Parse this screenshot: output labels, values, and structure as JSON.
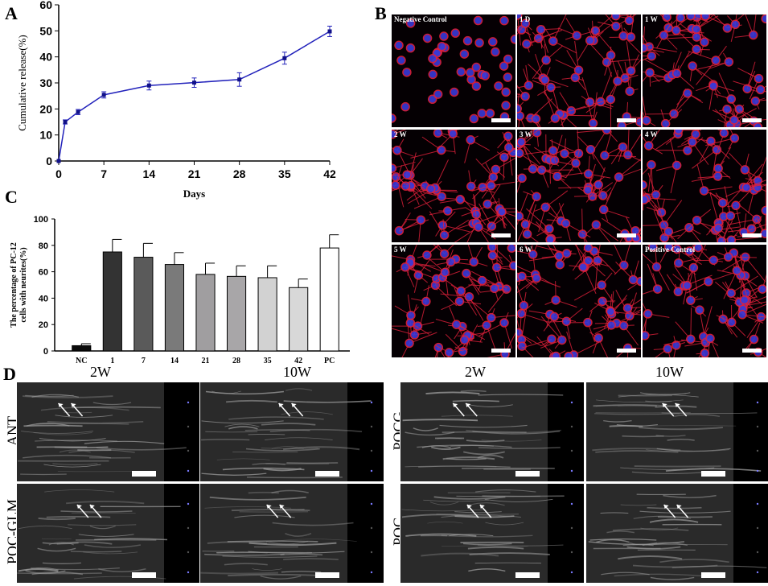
{
  "panel_labels": {
    "a": "A",
    "b": "B",
    "c": "C",
    "d": "D"
  },
  "chart_data": [
    {
      "type": "line",
      "panel": "A",
      "xlabel": "Days",
      "ylabel": "Cumulative release(%)",
      "xlim": [
        0,
        42
      ],
      "ylim": [
        0,
        60
      ],
      "xticks": [
        0,
        7,
        14,
        21,
        28,
        35,
        42
      ],
      "yticks": [
        0,
        10,
        20,
        30,
        40,
        50,
        60
      ],
      "color": "#2222bb",
      "x": [
        0,
        1,
        3,
        7,
        14,
        21,
        28,
        35,
        42
      ],
      "y": [
        0,
        15.0,
        18.8,
        25.4,
        29.0,
        30.1,
        31.3,
        39.5,
        49.8
      ],
      "error": [
        0,
        0.8,
        1.0,
        1.2,
        1.7,
        1.8,
        2.6,
        2.3,
        2.0
      ],
      "grid": false
    },
    {
      "type": "bar",
      "panel": "C",
      "xlabel": "Days",
      "ylabel_lines": [
        "The percentage of PC-12",
        "cells with neurites(%)"
      ],
      "ylim": [
        0,
        100
      ],
      "yticks": [
        0,
        20,
        40,
        60,
        80,
        100
      ],
      "categories": [
        "NC",
        "1",
        "7",
        "14",
        "21",
        "28",
        "35",
        "42",
        "PC"
      ],
      "values": [
        4,
        75,
        71,
        65.5,
        58,
        56.5,
        55.5,
        48,
        78
      ],
      "error": [
        1.5,
        9.5,
        10.5,
        9,
        8.5,
        8,
        9,
        6.5,
        10
      ],
      "colors": [
        "#0a0a0a",
        "#333333",
        "#5a5a5a",
        "#7a7a7a",
        "#a09ea0",
        "#a8a6a8",
        "#d2d2d2",
        "#d8d8d8",
        "#ffffff"
      ],
      "grid": false
    }
  ],
  "microscopy": {
    "panels": [
      "Negative Control",
      "1 D",
      "1 W",
      "2 W",
      "3 W",
      "4 W",
      "5 W",
      "6 W",
      "Positive Control"
    ],
    "colors": {
      "actin": "#e0203a",
      "nuclei": "#3a3ad8",
      "background": "#050003"
    }
  },
  "ultrasound": {
    "column_titles": [
      "2W",
      "10W",
      "2W",
      "10W"
    ],
    "row_labels": [
      "ANT",
      "POC-GLM",
      "POCG",
      "POC"
    ]
  }
}
